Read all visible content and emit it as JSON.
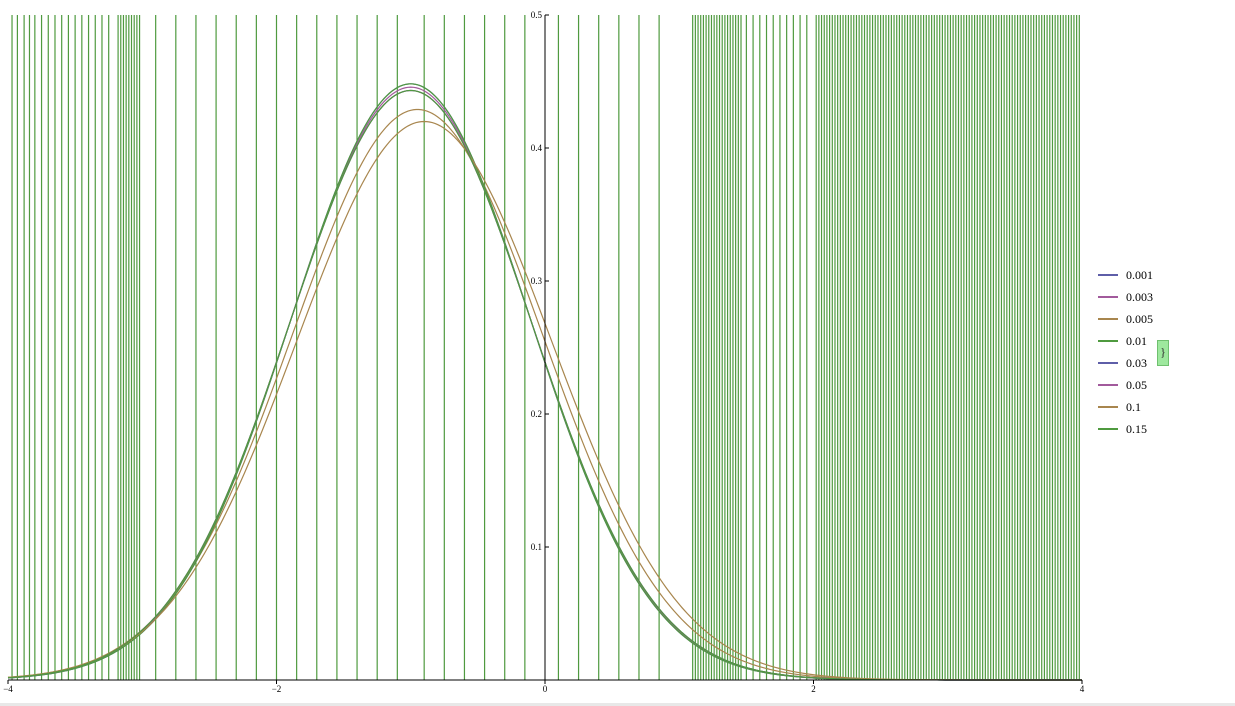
{
  "chart_data": {
    "type": "line",
    "title": "",
    "xlabel": "",
    "ylabel": "",
    "xlim": [
      -4,
      4
    ],
    "ylim": [
      0,
      0.5
    ],
    "grid": false,
    "legend_position": "right",
    "x_ticks": [
      {
        "value": -4,
        "label": "−4"
      },
      {
        "value": -2,
        "label": "−2"
      },
      {
        "value": 0,
        "label": "0"
      },
      {
        "value": 2,
        "label": "2"
      },
      {
        "value": 4,
        "label": "4"
      }
    ],
    "y_ticks": [
      {
        "value": 0.1,
        "label": "0.1"
      },
      {
        "value": 0.2,
        "label": "0.2"
      },
      {
        "value": 0.3,
        "label": "0.3"
      },
      {
        "value": 0.4,
        "label": "0.4"
      },
      {
        "value": 0.5,
        "label": "0.5"
      }
    ],
    "series": [
      {
        "name": "0.001",
        "color": "#5e5ea8",
        "mean": -1.0,
        "sd": 0.89
      },
      {
        "name": "0.003",
        "color": "#a25a9c",
        "mean": -1.0,
        "sd": 0.895
      },
      {
        "name": "0.005",
        "color": "#a8864e",
        "mean": -0.95,
        "sd": 0.93
      },
      {
        "name": "0.01",
        "color": "#4f9a3f",
        "mean": -1.0,
        "sd": 0.89
      },
      {
        "name": "0.03",
        "color": "#5e5ea8",
        "mean": -1.0,
        "sd": 0.9
      },
      {
        "name": "0.05",
        "color": "#a25a9c",
        "mean": -1.0,
        "sd": 0.9
      },
      {
        "name": "0.1",
        "color": "#a8864e",
        "mean": -0.9,
        "sd": 0.95
      },
      {
        "name": "0.15",
        "color": "#4f9a3f",
        "mean": -1.0,
        "sd": 0.9
      }
    ],
    "vertical_spikes": {
      "color": "#4f9a3f",
      "x_values": [
        -3.97,
        -3.93,
        -3.88,
        -3.84,
        -3.8,
        -3.75,
        -3.7,
        -3.65,
        -3.6,
        -3.55,
        -3.5,
        -3.45,
        -3.4,
        -3.35,
        -3.3,
        -3.25,
        -3.18,
        -3.16,
        -3.14,
        -3.12,
        -3.1,
        -3.08,
        -3.06,
        -3.04,
        -3.02,
        -2.9,
        -2.75,
        -2.6,
        -2.45,
        -2.3,
        -2.15,
        -2.0,
        -1.85,
        -1.7,
        -1.55,
        -1.4,
        -1.25,
        -1.1,
        -0.9,
        -0.75,
        -0.6,
        -0.45,
        -0.3,
        -0.15,
        0.1,
        0.25,
        0.4,
        0.55,
        0.7,
        0.85,
        1.1,
        1.12,
        1.14,
        1.16,
        1.18,
        1.2,
        1.22,
        1.24,
        1.26,
        1.28,
        1.3,
        1.32,
        1.34,
        1.36,
        1.38,
        1.4,
        1.42,
        1.44,
        1.46,
        1.5,
        1.55,
        1.6,
        1.65,
        1.7,
        1.75,
        1.8,
        1.85,
        1.9,
        1.95,
        2.02,
        2.04,
        2.06,
        2.08,
        2.1,
        2.12,
        2.14,
        2.16,
        2.18,
        2.2,
        2.22,
        2.24,
        2.26,
        2.28,
        2.3,
        2.32,
        2.34,
        2.36,
        2.38,
        2.4,
        2.42,
        2.44,
        2.46,
        2.48,
        2.5,
        2.52,
        2.54,
        2.56,
        2.58,
        2.6,
        2.62,
        2.64,
        2.66,
        2.68,
        2.7,
        2.72,
        2.74,
        2.76,
        2.78,
        2.8,
        2.82,
        2.84,
        2.86,
        2.88,
        2.9,
        2.92,
        2.94,
        2.96,
        2.98,
        3.0,
        3.02,
        3.04,
        3.06,
        3.08,
        3.1,
        3.12,
        3.14,
        3.16,
        3.18,
        3.2,
        3.22,
        3.24,
        3.26,
        3.28,
        3.3,
        3.32,
        3.34,
        3.36,
        3.38,
        3.4,
        3.42,
        3.44,
        3.46,
        3.48,
        3.5,
        3.52,
        3.54,
        3.56,
        3.58,
        3.6,
        3.62,
        3.64,
        3.66,
        3.68,
        3.7,
        3.72,
        3.74,
        3.76,
        3.78,
        3.8,
        3.82,
        3.84,
        3.86,
        3.88,
        3.9,
        3.92,
        3.94,
        3.96,
        3.98
      ]
    }
  }
}
